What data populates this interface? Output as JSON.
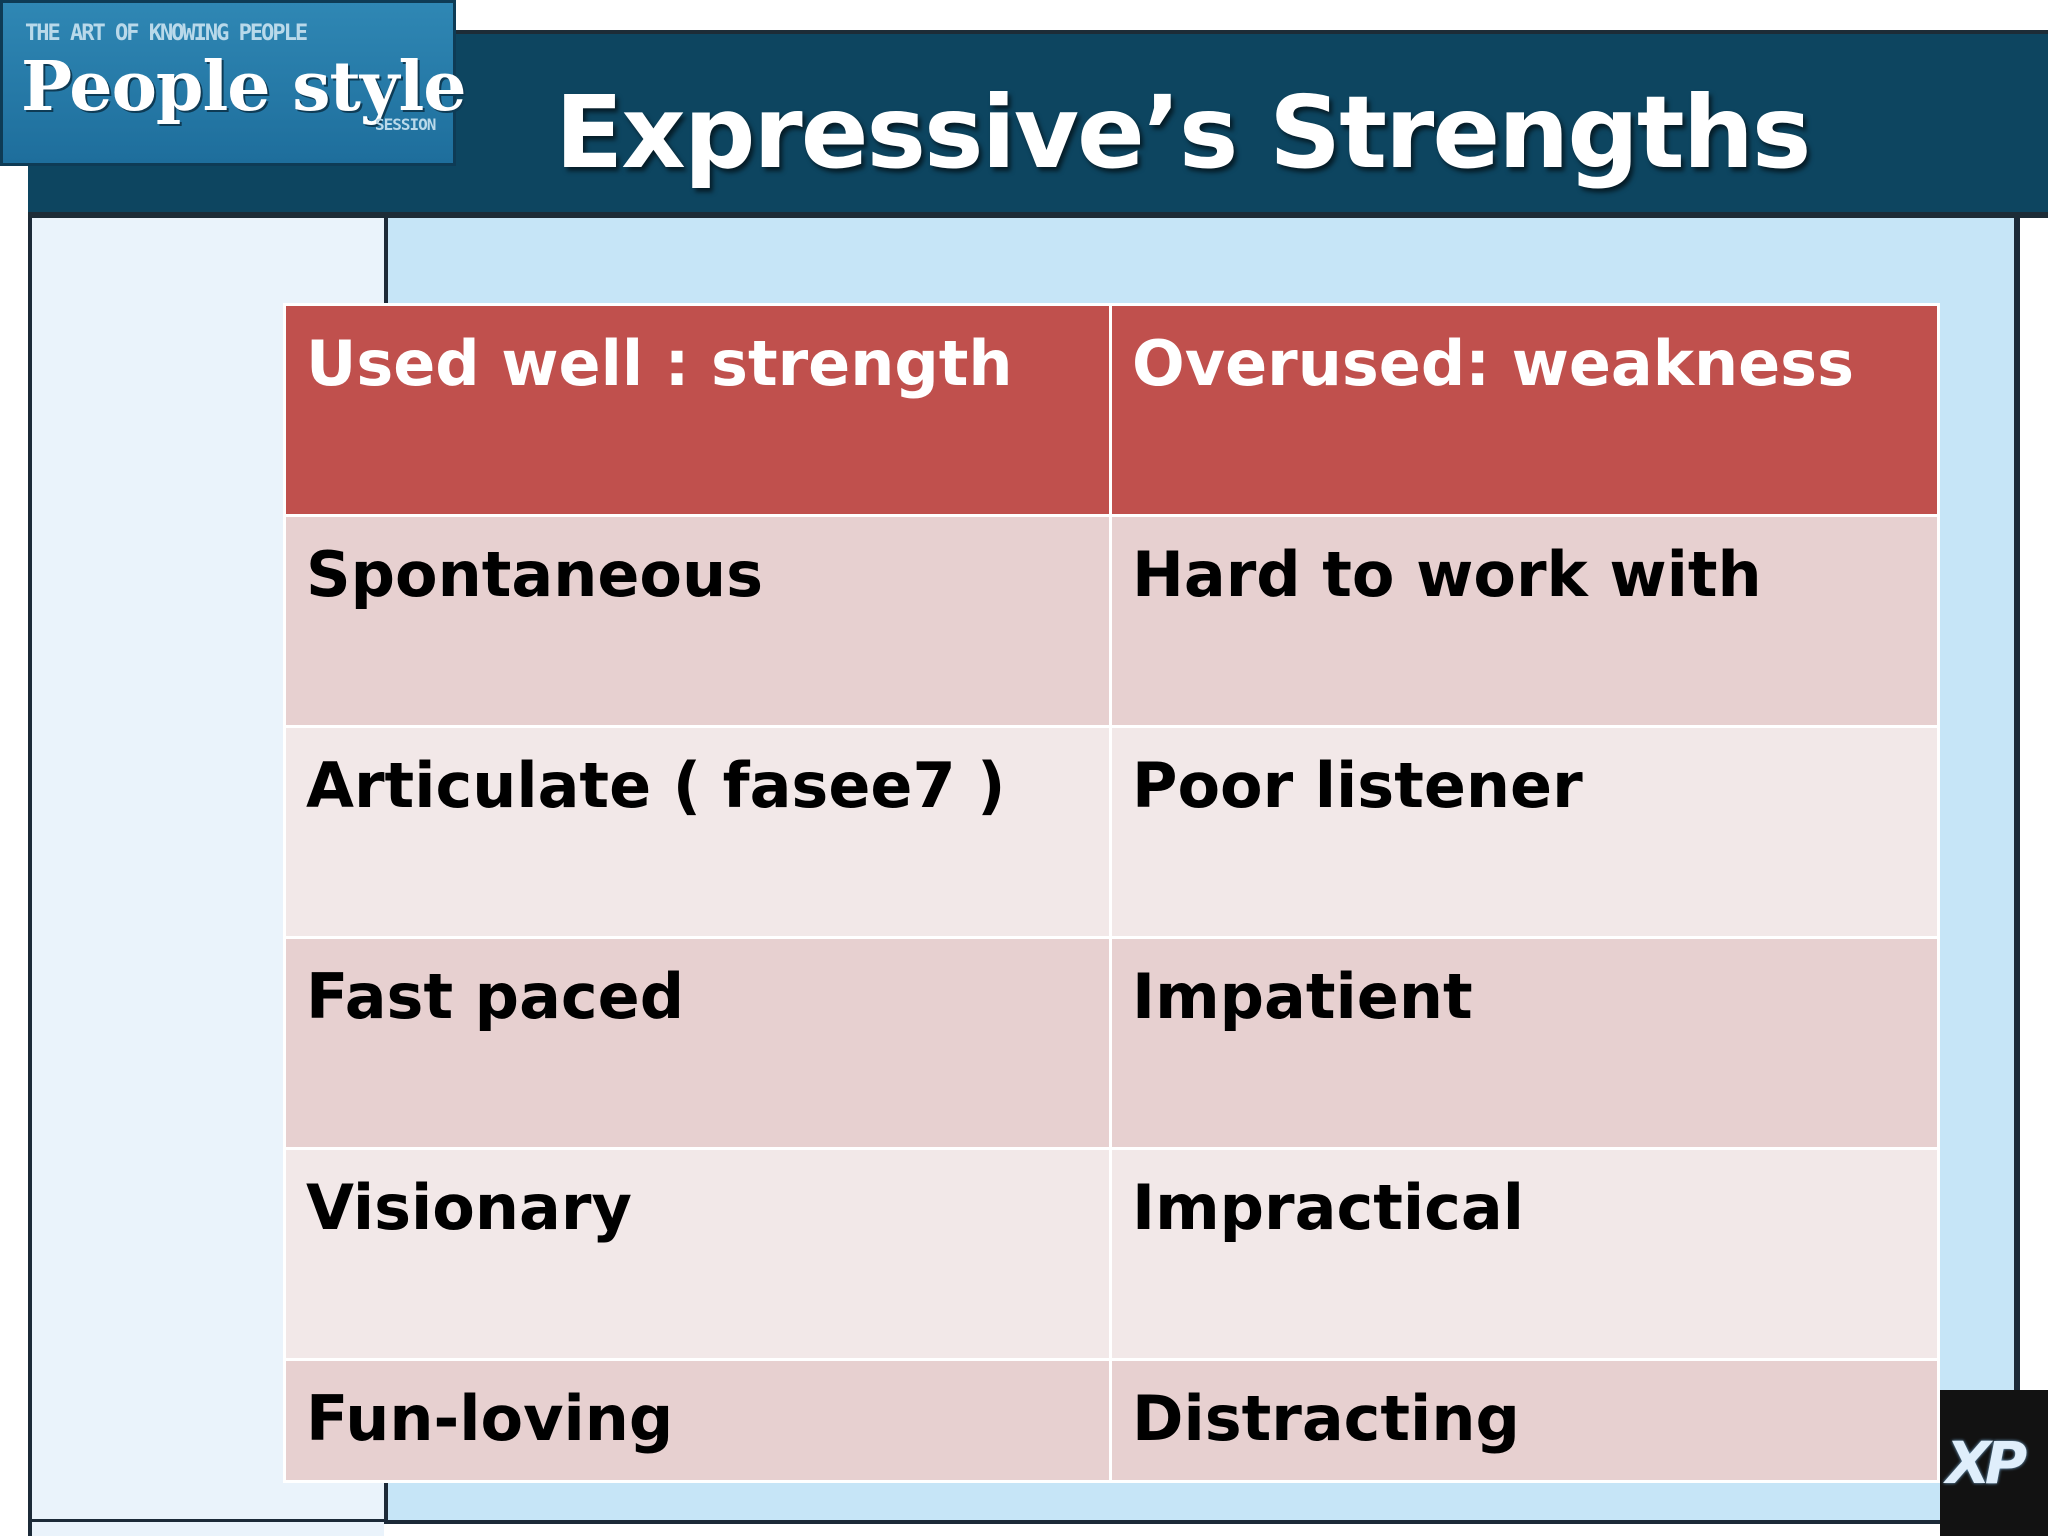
{
  "slide": {
    "title": "Expressive’s Strengths",
    "logo": {
      "tagline": "THE ART OF KNOWING PEOPLE",
      "name": "People style",
      "subtitle": "SESSION"
    },
    "badge": "XP"
  },
  "table": {
    "headers": [
      "Used well : strength",
      "Overused: weakness"
    ],
    "rows": [
      [
        "Spontaneous",
        "Hard to work with"
      ],
      [
        "Articulate ( fasee7 )",
        "Poor listener"
      ],
      [
        "Fast paced",
        "Impatient"
      ],
      [
        "Visionary",
        "Impractical"
      ],
      [
        "Fun-loving",
        "Distracting"
      ]
    ]
  },
  "colors": {
    "title_bar": "#0d4560",
    "header_row": "#c0504d",
    "row_dark": "#e7d0d0",
    "row_light": "#f2e8e8",
    "panel_blue": "#c6e5f7"
  }
}
